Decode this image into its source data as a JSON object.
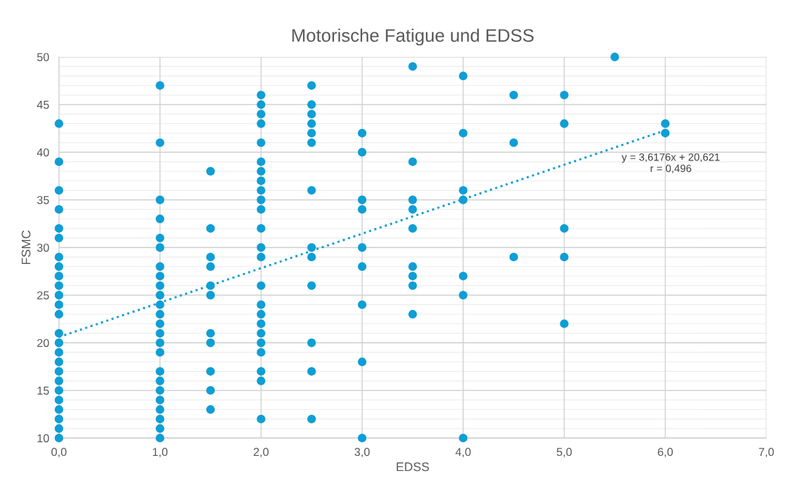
{
  "chart_data": {
    "type": "scatter",
    "title": "Motorische Fatigue und EDSS",
    "xlabel": "EDSS",
    "ylabel": "FSMC",
    "xlim": [
      0,
      7
    ],
    "ylim": [
      10,
      50
    ],
    "xticks": [
      {
        "value": 0,
        "label": "0,0"
      },
      {
        "value": 1,
        "label": "1,0"
      },
      {
        "value": 2,
        "label": "2,0"
      },
      {
        "value": 3,
        "label": "3,0"
      },
      {
        "value": 4,
        "label": "4,0"
      },
      {
        "value": 5,
        "label": "5,0"
      },
      {
        "value": 6,
        "label": "6,0"
      },
      {
        "value": 7,
        "label": "7,0"
      }
    ],
    "yticks": [
      10,
      15,
      20,
      25,
      30,
      35,
      40,
      45,
      50
    ],
    "grid": true,
    "marker": "circle",
    "series": [
      {
        "color": "#0f9ed5",
        "x": [
          0,
          0,
          0,
          0,
          0,
          0,
          0,
          0,
          0,
          0,
          0,
          0,
          0,
          0,
          0,
          0,
          0,
          0,
          0,
          0,
          0,
          0,
          0,
          0,
          0,
          1,
          1,
          1,
          1,
          1,
          1,
          1,
          1,
          1,
          1,
          1,
          1,
          1,
          1,
          1,
          1,
          1,
          1,
          1,
          1,
          1,
          1,
          1,
          1,
          1.5,
          1.5,
          1.5,
          1.5,
          1.5,
          1.5,
          1.5,
          1.5,
          1.5,
          1.5,
          1.5,
          2,
          2,
          2,
          2,
          2,
          2,
          2,
          2,
          2,
          2,
          2,
          2,
          2,
          2,
          2,
          2,
          2,
          2,
          2,
          2,
          2,
          2,
          2,
          2,
          2.5,
          2.5,
          2.5,
          2.5,
          2.5,
          2.5,
          2.5,
          2.5,
          2.5,
          2.5,
          2.5,
          2.5,
          2.5,
          3,
          3,
          3,
          3,
          3,
          3,
          3,
          3,
          3,
          3.5,
          3.5,
          3.5,
          3.5,
          3.5,
          3.5,
          3.5,
          3.5,
          3.5,
          4,
          4,
          4,
          4,
          4,
          4,
          4,
          4.5,
          4.5,
          4.5,
          5,
          5,
          5,
          5,
          5,
          5.5,
          6,
          6
        ],
        "values": [
          43,
          39,
          36,
          34,
          32,
          31,
          29,
          28,
          27,
          26,
          25,
          24,
          23,
          21,
          20,
          19,
          18,
          17,
          16,
          15,
          14,
          13,
          12,
          11,
          10,
          47,
          41,
          35,
          33,
          31,
          30,
          28,
          27,
          26,
          25,
          24,
          23,
          22,
          21,
          20,
          19,
          17,
          16,
          15,
          14,
          13,
          12,
          11,
          10,
          38,
          32,
          29,
          28,
          26,
          25,
          21,
          20,
          17,
          15,
          13,
          46,
          45,
          44,
          43,
          41,
          39,
          38,
          37,
          36,
          35,
          34,
          32,
          30,
          29,
          26,
          24,
          23,
          22,
          21,
          20,
          19,
          17,
          16,
          12,
          47,
          45,
          44,
          43,
          42,
          41,
          36,
          30,
          29,
          26,
          20,
          17,
          12,
          42,
          40,
          35,
          34,
          30,
          28,
          24,
          18,
          10,
          49,
          39,
          35,
          34,
          32,
          28,
          27,
          26,
          23,
          48,
          42,
          36,
          35,
          27,
          25,
          10,
          46,
          41,
          29,
          46,
          43,
          32,
          29,
          22,
          50,
          43,
          42
        ]
      },
      {
        "type": "line",
        "color": "#0f9ed5",
        "line_style": "dotted",
        "marker": "none",
        "x": [
          0,
          6
        ],
        "values": [
          20.6,
          42.3
        ]
      }
    ],
    "annotations": [
      "y = 3,6176x + 20,621\nr = 0,496"
    ]
  }
}
